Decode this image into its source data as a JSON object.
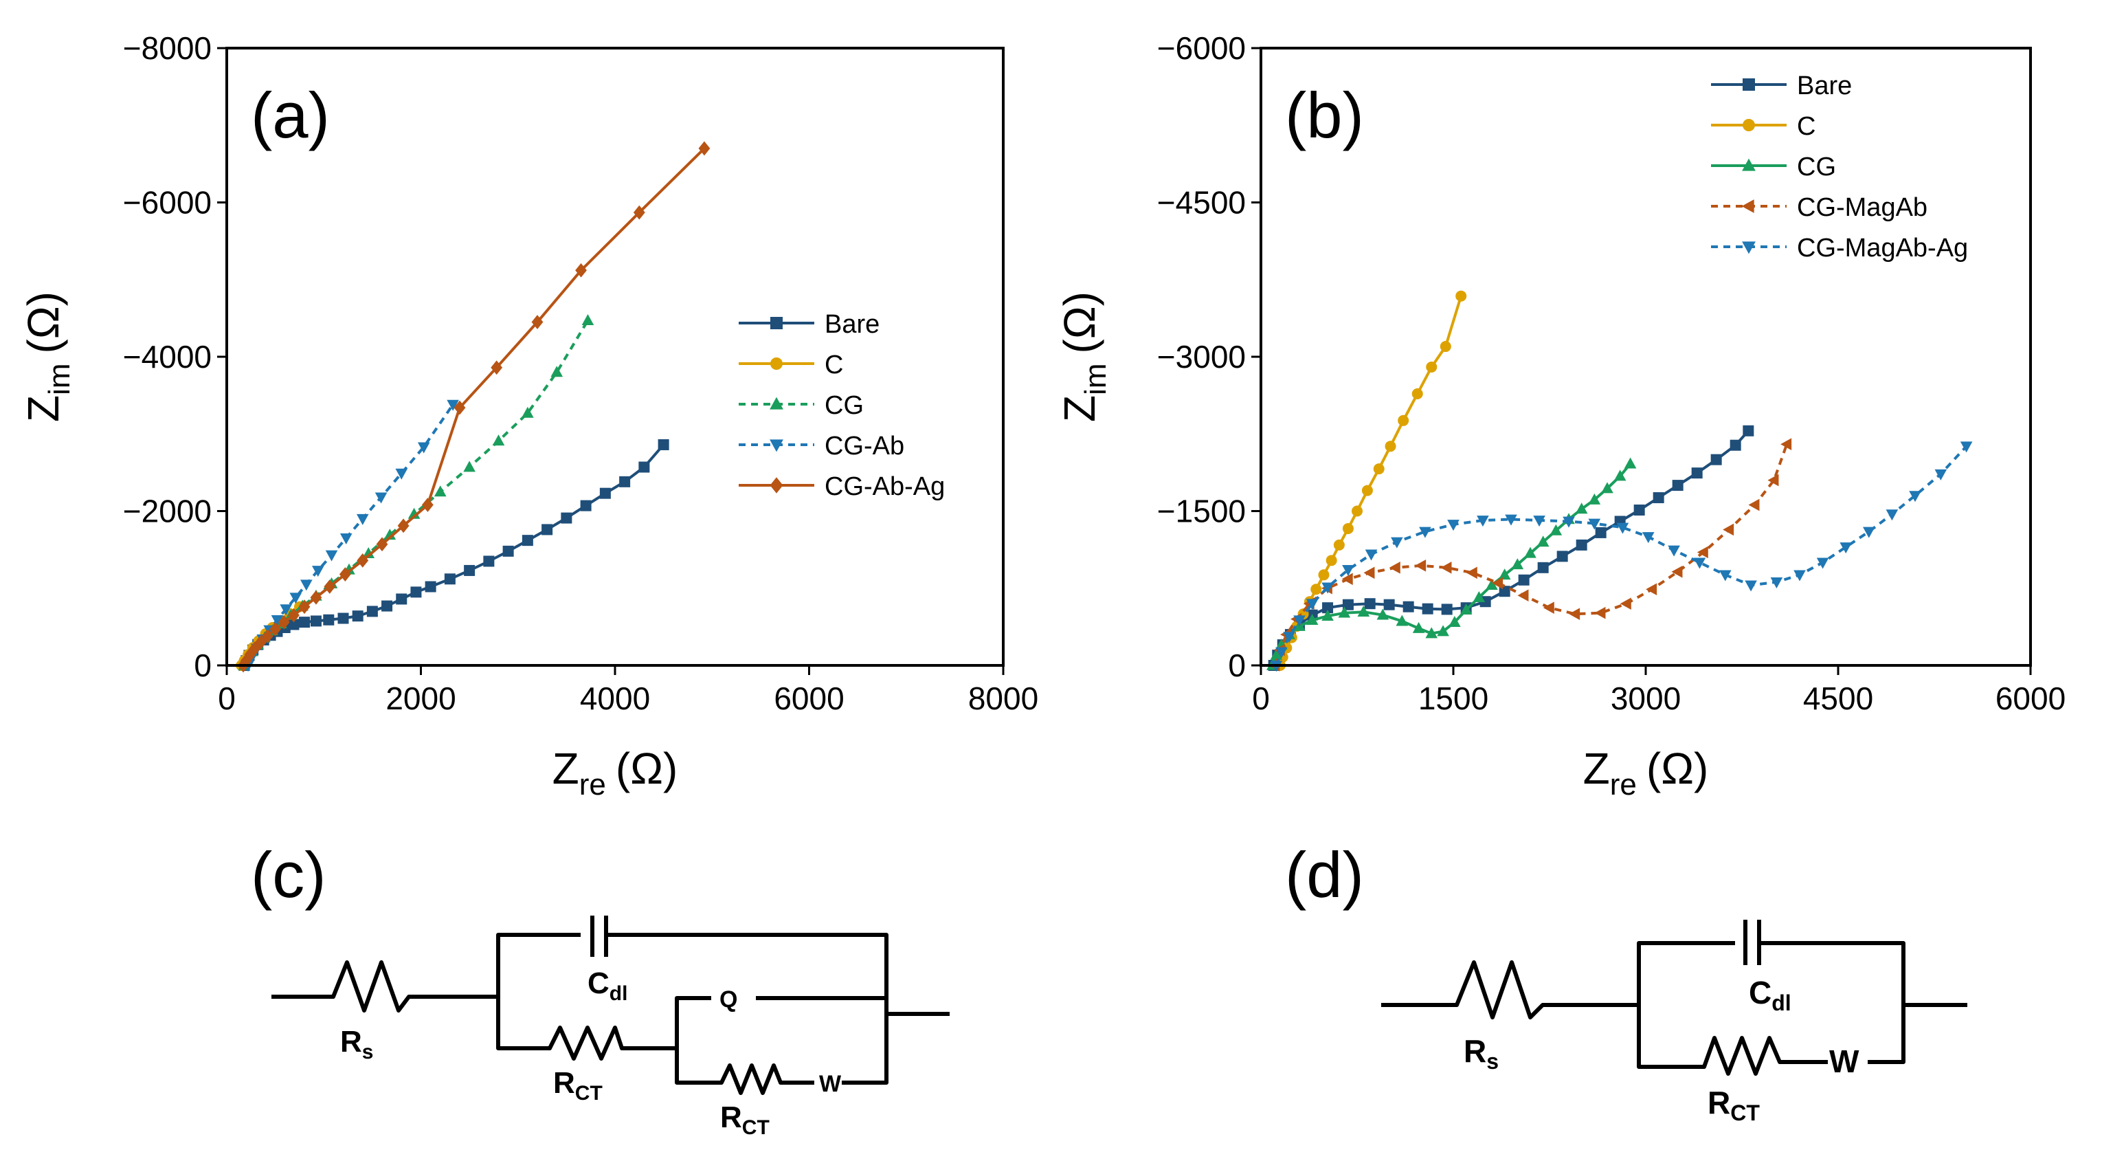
{
  "chart_data": [
    {
      "panel": "(a)",
      "type": "scatter",
      "xlabel": {
        "main": "Z",
        "sub": "re",
        "unit": "(Ω)"
      },
      "ylabel": {
        "main": "Z",
        "sub": "im",
        "unit": "(Ω)"
      },
      "xlim": [
        0,
        8000
      ],
      "ylim": [
        0,
        8000
      ],
      "xticks": [
        "0",
        "2000",
        "4000",
        "6000",
        "8000"
      ],
      "yticks": [
        "0",
        "−2000",
        "−4000",
        "−6000",
        "−8000"
      ],
      "legend": [
        "Bare",
        "C",
        "CG",
        "CG-Ab",
        "CG-Ab-Ag"
      ],
      "series": [
        {
          "name": "Bare",
          "color": "#1f4e79",
          "marker": "square",
          "dash": "",
          "points": [
            [
              180,
              0
            ],
            [
              200,
              60
            ],
            [
              230,
              130
            ],
            [
              270,
              200
            ],
            [
              320,
              270
            ],
            [
              380,
              330
            ],
            [
              450,
              390
            ],
            [
              520,
              440
            ],
            [
              600,
              490
            ],
            [
              690,
              530
            ],
            [
              800,
              560
            ],
            [
              920,
              575
            ],
            [
              1050,
              590
            ],
            [
              1200,
              610
            ],
            [
              1350,
              640
            ],
            [
              1500,
              700
            ],
            [
              1650,
              770
            ],
            [
              1800,
              860
            ],
            [
              1950,
              950
            ],
            [
              2100,
              1020
            ],
            [
              2300,
              1120
            ],
            [
              2500,
              1230
            ],
            [
              2700,
              1350
            ],
            [
              2900,
              1480
            ],
            [
              3100,
              1620
            ],
            [
              3300,
              1760
            ],
            [
              3500,
              1910
            ],
            [
              3700,
              2070
            ],
            [
              3900,
              2230
            ],
            [
              4100,
              2380
            ],
            [
              4300,
              2570
            ],
            [
              4500,
              2860
            ]
          ]
        },
        {
          "name": "C",
          "color": "#dda200",
          "marker": "circle",
          "dash": "",
          "points": [
            [
              150,
              0
            ],
            [
              180,
              60
            ],
            [
              220,
              140
            ],
            [
              270,
              230
            ],
            [
              330,
              320
            ],
            [
              400,
              410
            ],
            [
              470,
              490
            ],
            [
              560,
              580
            ],
            [
              650,
              670
            ],
            [
              750,
              760
            ]
          ]
        },
        {
          "name": "CG",
          "color": "#1a9e5c",
          "marker": "triangle-up",
          "dash": "10,8",
          "points": [
            [
              180,
              0
            ],
            [
              210,
              90
            ],
            [
              260,
              180
            ],
            [
              320,
              270
            ],
            [
              390,
              360
            ],
            [
              470,
              450
            ],
            [
              560,
              540
            ],
            [
              660,
              650
            ],
            [
              780,
              770
            ],
            [
              920,
              900
            ],
            [
              1080,
              1060
            ],
            [
              1260,
              1240
            ],
            [
              1460,
              1450
            ],
            [
              1680,
              1690
            ],
            [
              1930,
              1960
            ],
            [
              2200,
              2250
            ],
            [
              2500,
              2570
            ],
            [
              2800,
              2910
            ],
            [
              3100,
              3270
            ],
            [
              3400,
              3800
            ],
            [
              3720,
              4470
            ]
          ]
        },
        {
          "name": "CG-Ab",
          "color": "#1f77b4",
          "marker": "triangle-down",
          "dash": "10,8",
          "points": [
            [
              220,
              0
            ],
            [
              260,
              110
            ],
            [
              310,
              220
            ],
            [
              370,
              340
            ],
            [
              440,
              460
            ],
            [
              520,
              590
            ],
            [
              610,
              730
            ],
            [
              710,
              880
            ],
            [
              820,
              1050
            ],
            [
              940,
              1230
            ],
            [
              1080,
              1430
            ],
            [
              1230,
              1650
            ],
            [
              1400,
              1900
            ],
            [
              1590,
              2180
            ],
            [
              1800,
              2490
            ],
            [
              2030,
              2830
            ],
            [
              2330,
              3380
            ]
          ]
        },
        {
          "name": "CG-Ab-Ag",
          "color": "#b85414",
          "marker": "diamond",
          "dash": "",
          "points": [
            [
              170,
              0
            ],
            [
              200,
              60
            ],
            [
              240,
              140
            ],
            [
              290,
              220
            ],
            [
              350,
              300
            ],
            [
              420,
              380
            ],
            [
              500,
              470
            ],
            [
              590,
              560
            ],
            [
              690,
              650
            ],
            [
              800,
              760
            ],
            [
              920,
              880
            ],
            [
              1060,
              1020
            ],
            [
              1220,
              1180
            ],
            [
              1400,
              1360
            ],
            [
              1600,
              1570
            ],
            [
              1820,
              1810
            ],
            [
              2070,
              2080
            ],
            [
              2400,
              3340
            ],
            [
              2780,
              3860
            ],
            [
              3200,
              4450
            ],
            [
              3650,
              5120
            ],
            [
              4250,
              5870
            ],
            [
              4920,
              6700
            ]
          ]
        }
      ]
    },
    {
      "panel": "(b)",
      "type": "scatter",
      "xlabel": {
        "main": "Z",
        "sub": "re",
        "unit": "(Ω)"
      },
      "ylabel": {
        "main": "Z",
        "sub": "im",
        "unit": "(Ω)"
      },
      "xlim": [
        0,
        6000
      ],
      "ylim": [
        0,
        6000
      ],
      "xticks": [
        "0",
        "1500",
        "3000",
        "4500",
        "6000"
      ],
      "yticks": [
        "0",
        "−1500",
        "−3000",
        "−4500",
        "−6000"
      ],
      "legend": [
        "Bare",
        "C",
        "CG",
        "CG-MagAb",
        "CG-MagAb-Ag"
      ],
      "series": [
        {
          "name": "Bare",
          "color": "#1f4e79",
          "marker": "square",
          "dash": "",
          "points": [
            [
              100,
              0
            ],
            [
              130,
              100
            ],
            [
              170,
              200
            ],
            [
              230,
              300
            ],
            [
              300,
              400
            ],
            [
              400,
              490
            ],
            [
              520,
              560
            ],
            [
              680,
              590
            ],
            [
              850,
              600
            ],
            [
              1000,
              590
            ],
            [
              1150,
              570
            ],
            [
              1300,
              550
            ],
            [
              1450,
              545
            ],
            [
              1600,
              560
            ],
            [
              1750,
              620
            ],
            [
              1900,
              720
            ],
            [
              2050,
              830
            ],
            [
              2200,
              950
            ],
            [
              2350,
              1060
            ],
            [
              2500,
              1170
            ],
            [
              2650,
              1290
            ],
            [
              2800,
              1400
            ],
            [
              2950,
              1510
            ],
            [
              3100,
              1630
            ],
            [
              3250,
              1750
            ],
            [
              3400,
              1870
            ],
            [
              3550,
              2000
            ],
            [
              3700,
              2140
            ],
            [
              3800,
              2280
            ]
          ]
        },
        {
          "name": "C",
          "color": "#dda200",
          "marker": "circle",
          "dash": "",
          "points": [
            [
              150,
              0
            ],
            [
              170,
              80
            ],
            [
              200,
              170
            ],
            [
              240,
              270
            ],
            [
              280,
              380
            ],
            [
              330,
              500
            ],
            [
              380,
              620
            ],
            [
              430,
              740
            ],
            [
              490,
              880
            ],
            [
              550,
              1020
            ],
            [
              610,
              1170
            ],
            [
              680,
              1330
            ],
            [
              750,
              1500
            ],
            [
              830,
              1700
            ],
            [
              920,
              1910
            ],
            [
              1010,
              2130
            ],
            [
              1110,
              2380
            ],
            [
              1220,
              2640
            ],
            [
              1330,
              2900
            ],
            [
              1440,
              3100
            ],
            [
              1560,
              3590
            ]
          ]
        },
        {
          "name": "CG",
          "color": "#1a9e5c",
          "marker": "triangle-up",
          "dash": "",
          "points": [
            [
              90,
              0
            ],
            [
              120,
              100
            ],
            [
              160,
              200
            ],
            [
              220,
              300
            ],
            [
              300,
              380
            ],
            [
              400,
              440
            ],
            [
              520,
              480
            ],
            [
              650,
              510
            ],
            [
              800,
              520
            ],
            [
              950,
              490
            ],
            [
              1100,
              430
            ],
            [
              1230,
              360
            ],
            [
              1330,
              310
            ],
            [
              1420,
              330
            ],
            [
              1510,
              420
            ],
            [
              1600,
              540
            ],
            [
              1700,
              660
            ],
            [
              1800,
              780
            ],
            [
              1900,
              880
            ],
            [
              2000,
              980
            ],
            [
              2100,
              1090
            ],
            [
              2200,
              1200
            ],
            [
              2300,
              1310
            ],
            [
              2400,
              1420
            ],
            [
              2500,
              1520
            ],
            [
              2600,
              1610
            ],
            [
              2700,
              1720
            ],
            [
              2800,
              1840
            ],
            [
              2880,
              1960
            ]
          ]
        },
        {
          "name": "CG-MagAb",
          "color": "#b85414",
          "marker": "triangle-left",
          "dash": "10,8",
          "points": [
            [
              110,
              0
            ],
            [
              150,
              150
            ],
            [
              200,
              300
            ],
            [
              280,
              450
            ],
            [
              380,
              600
            ],
            [
              520,
              750
            ],
            [
              680,
              840
            ],
            [
              850,
              900
            ],
            [
              1050,
              950
            ],
            [
              1250,
              970
            ],
            [
              1450,
              950
            ],
            [
              1650,
              900
            ],
            [
              1850,
              800
            ],
            [
              2050,
              680
            ],
            [
              2250,
              560
            ],
            [
              2450,
              500
            ],
            [
              2650,
              510
            ],
            [
              2850,
              600
            ],
            [
              3050,
              740
            ],
            [
              3250,
              910
            ],
            [
              3450,
              1100
            ],
            [
              3650,
              1320
            ],
            [
              3850,
              1560
            ],
            [
              4000,
              1800
            ],
            [
              4100,
              2150
            ]
          ]
        },
        {
          "name": "CG-MagAb-Ag",
          "color": "#1f77b4",
          "marker": "triangle-down",
          "dash": "10,8",
          "points": [
            [
              120,
              0
            ],
            [
              160,
              130
            ],
            [
              220,
              280
            ],
            [
              300,
              440
            ],
            [
              400,
              600
            ],
            [
              520,
              760
            ],
            [
              680,
              930
            ],
            [
              860,
              1080
            ],
            [
              1060,
              1200
            ],
            [
              1280,
              1300
            ],
            [
              1500,
              1370
            ],
            [
              1730,
              1410
            ],
            [
              1950,
              1420
            ],
            [
              2170,
              1410
            ],
            [
              2400,
              1400
            ],
            [
              2600,
              1380
            ],
            [
              2820,
              1340
            ],
            [
              3020,
              1250
            ],
            [
              3220,
              1120
            ],
            [
              3420,
              1000
            ],
            [
              3620,
              880
            ],
            [
              3820,
              780
            ],
            [
              4020,
              810
            ],
            [
              4200,
              880
            ],
            [
              4380,
              1000
            ],
            [
              4560,
              1150
            ],
            [
              4740,
              1300
            ],
            [
              4920,
              1470
            ],
            [
              5100,
              1650
            ],
            [
              5300,
              1860
            ],
            [
              5500,
              2130
            ]
          ]
        }
      ]
    }
  ],
  "circuits": [
    {
      "panel": "(c)",
      "labels": {
        "rs": "R",
        "rs_sub": "s",
        "cdl": "C",
        "cdl_sub": "dl",
        "rct1": "R",
        "rct1_sub": "CT",
        "rct2": "R",
        "rct2_sub": "CT",
        "q": "Q",
        "w": "W"
      }
    },
    {
      "panel": "(d)",
      "labels": {
        "rs": "R",
        "rs_sub": "s",
        "cdl": "C",
        "cdl_sub": "dl",
        "rct": "R",
        "rct_sub": "CT",
        "w": "W"
      }
    }
  ],
  "colors": {
    "axis": "#000000",
    "background": "#ffffff"
  }
}
